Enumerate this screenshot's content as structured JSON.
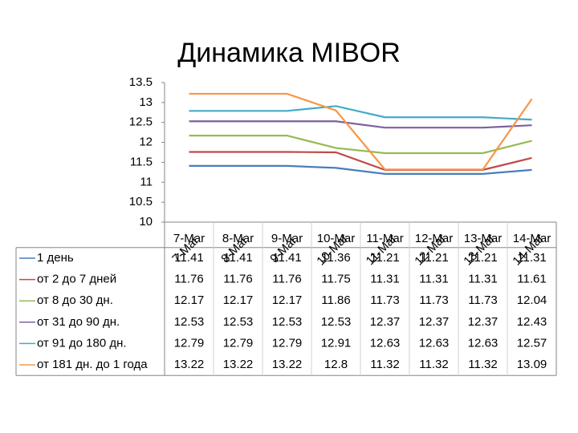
{
  "chart_data": {
    "type": "line",
    "title": "Динамика MIBOR",
    "categories": [
      "7-Mar",
      "8-Mar",
      "9-Mar",
      "10-Mar",
      "11-Mar",
      "12-Mar",
      "13-Mar",
      "14-Mar"
    ],
    "series": [
      {
        "name": "1 день",
        "color": "#4a7ebb",
        "values": [
          11.41,
          11.41,
          11.41,
          11.36,
          11.21,
          11.21,
          11.21,
          11.31
        ]
      },
      {
        "name": "от 2 до 7 дней",
        "color": "#be4b48",
        "values": [
          11.76,
          11.76,
          11.76,
          11.75,
          11.31,
          11.31,
          11.31,
          11.61
        ]
      },
      {
        "name": "от 8 до 30 дн.",
        "color": "#98b954",
        "values": [
          12.17,
          12.17,
          12.17,
          11.86,
          11.73,
          11.73,
          11.73,
          12.04
        ]
      },
      {
        "name": "от 31 до 90 дн.",
        "color": "#7d60a0",
        "values": [
          12.53,
          12.53,
          12.53,
          12.53,
          12.37,
          12.37,
          12.37,
          12.43
        ]
      },
      {
        "name": "от 91 до 180 дн.",
        "color": "#46aac5",
        "values": [
          12.79,
          12.79,
          12.79,
          12.91,
          12.63,
          12.63,
          12.63,
          12.57
        ]
      },
      {
        "name": "от 181 дн. до 1 года",
        "color": "#f79646",
        "values": [
          13.22,
          13.22,
          13.22,
          12.8,
          11.32,
          11.32,
          11.32,
          13.09
        ]
      }
    ],
    "ylim": [
      10,
      13.5
    ],
    "yticks": [
      10,
      10.5,
      11,
      11.5,
      12,
      12.5,
      13,
      13.5
    ],
    "grid": false
  }
}
